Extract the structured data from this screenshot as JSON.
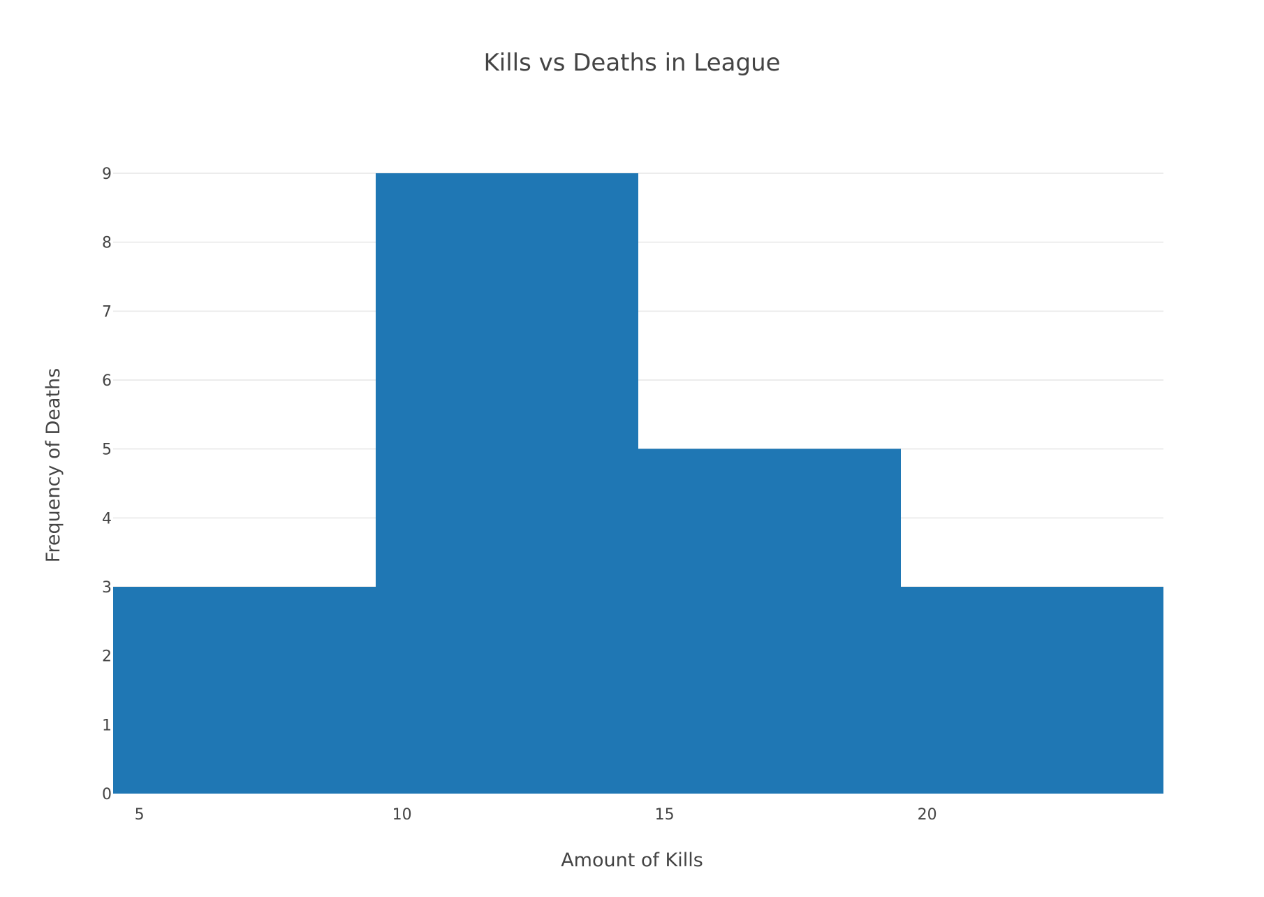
{
  "chart_data": {
    "type": "bar",
    "title": "Kills vs Deaths in League",
    "xlabel": "Amount of Kills",
    "ylabel": "Frequency of Deaths",
    "bins": [
      {
        "start": 4.5,
        "end": 9.5,
        "count": 3
      },
      {
        "start": 9.5,
        "end": 14.5,
        "count": 9
      },
      {
        "start": 14.5,
        "end": 19.5,
        "count": 5
      },
      {
        "start": 19.5,
        "end": 24.5,
        "count": 3
      }
    ],
    "xlim": [
      4.5,
      24.5
    ],
    "ylim": [
      0,
      9
    ],
    "x_ticks": [
      "5",
      "10",
      "15",
      "20"
    ],
    "y_ticks": [
      "0",
      "1",
      "2",
      "3",
      "4",
      "5",
      "6",
      "7",
      "8",
      "9"
    ],
    "grid": true,
    "bar_color": "#1f77b4"
  }
}
